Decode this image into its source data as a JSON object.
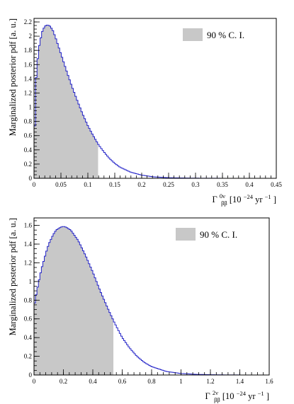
{
  "chart_data": [
    {
      "type": "histogram",
      "ylabel": "Marginalized posterior pdf [a. u.]",
      "xlabel": {
        "symbol": "Γ",
        "sub": "ββ",
        "sup": "0ν",
        "unit_pre": " [10",
        "unit_exp": "−24",
        "unit_mid": " yr",
        "unit_exp2": "−1",
        "unit_post": "]"
      },
      "legend": {
        "label": "90 % C. I.",
        "position": "top-right",
        "swatch_color": "#c8c8c8"
      },
      "line_color": "#2323c8",
      "fill_color": "#c8c8c8",
      "xlim": [
        0,
        0.45
      ],
      "ylim": [
        0,
        2.25
      ],
      "xticks": [
        "0",
        "0.05",
        "0.1",
        "0.15",
        "0.2",
        "0.25",
        "0.3",
        "0.35",
        "0.4",
        "0.45"
      ],
      "xtick_values": [
        0,
        0.05,
        0.1,
        0.15,
        0.2,
        0.25,
        0.3,
        0.35,
        0.4,
        0.45
      ],
      "yticks": [
        "0",
        "0.2",
        "0.4",
        "0.6",
        "0.8",
        "1",
        "1.2",
        "1.4",
        "1.6",
        "1.8",
        "2",
        "2.2"
      ],
      "ytick_values": [
        0,
        0.2,
        0.4,
        0.6,
        0.8,
        1.0,
        1.2,
        1.4,
        1.6,
        1.8,
        2.0,
        2.2
      ],
      "ci_upper": 0.119,
      "curve": {
        "x": [
          0,
          0.002,
          0.005,
          0.01,
          0.015,
          0.02,
          0.025,
          0.03,
          0.035,
          0.04,
          0.05,
          0.06,
          0.07,
          0.08,
          0.09,
          0.1,
          0.11,
          0.12,
          0.13,
          0.14,
          0.15,
          0.16,
          0.18,
          0.2,
          0.22,
          0.25,
          0.3,
          0.35,
          0.4,
          0.45
        ],
        "y": [
          0,
          1.05,
          1.55,
          1.88,
          2.06,
          2.14,
          2.16,
          2.14,
          2.08,
          1.98,
          1.75,
          1.52,
          1.3,
          1.1,
          0.91,
          0.74,
          0.6,
          0.47,
          0.37,
          0.28,
          0.21,
          0.155,
          0.085,
          0.045,
          0.022,
          0.008,
          0.002,
          0.0005,
          0.0001,
          0
        ]
      }
    },
    {
      "type": "histogram",
      "ylabel": "Marginalized posterior pdf [a. u.]",
      "xlabel": {
        "symbol": "Γ",
        "sub": "ββ",
        "sup": "2ν",
        "unit_pre": " [10",
        "unit_exp": "−24",
        "unit_mid": " yr",
        "unit_exp2": "−1",
        "unit_post": "]"
      },
      "legend": {
        "label": "90 % C. I.",
        "position": "top-right",
        "swatch_color": "#c8c8c8"
      },
      "line_color": "#2323c8",
      "fill_color": "#c8c8c8",
      "xlim": [
        0,
        1.6
      ],
      "ylim": [
        0,
        1.68
      ],
      "xticks": [
        "0",
        "0.2",
        "0.4",
        "0.6",
        "0.8",
        "1",
        "1.2",
        "1.4",
        "1.6"
      ],
      "xtick_values": [
        0,
        0.2,
        0.4,
        0.6,
        0.8,
        1.0,
        1.2,
        1.4,
        1.6
      ],
      "yticks": [
        "0",
        "0.2",
        "0.4",
        "0.6",
        "0.8",
        "1",
        "1.2",
        "1.4",
        "1.6"
      ],
      "ytick_values": [
        0,
        0.2,
        0.4,
        0.6,
        0.8,
        1.0,
        1.2,
        1.4,
        1.6
      ],
      "ci_upper": 0.54,
      "curve": {
        "x": [
          0,
          0.01,
          0.03,
          0.05,
          0.08,
          0.1,
          0.13,
          0.15,
          0.18,
          0.2,
          0.22,
          0.25,
          0.3,
          0.35,
          0.4,
          0.45,
          0.5,
          0.55,
          0.6,
          0.65,
          0.7,
          0.75,
          0.8,
          0.9,
          1.0,
          1.1,
          1.2,
          1.3,
          1.4,
          1.5,
          1.6
        ],
        "y": [
          0.72,
          0.82,
          0.98,
          1.13,
          1.3,
          1.4,
          1.5,
          1.55,
          1.58,
          1.59,
          1.58,
          1.55,
          1.44,
          1.28,
          1.1,
          0.9,
          0.72,
          0.55,
          0.4,
          0.29,
          0.2,
          0.135,
          0.09,
          0.038,
          0.016,
          0.007,
          0.003,
          0.0012,
          0.0005,
          0.0002,
          0
        ]
      }
    }
  ]
}
